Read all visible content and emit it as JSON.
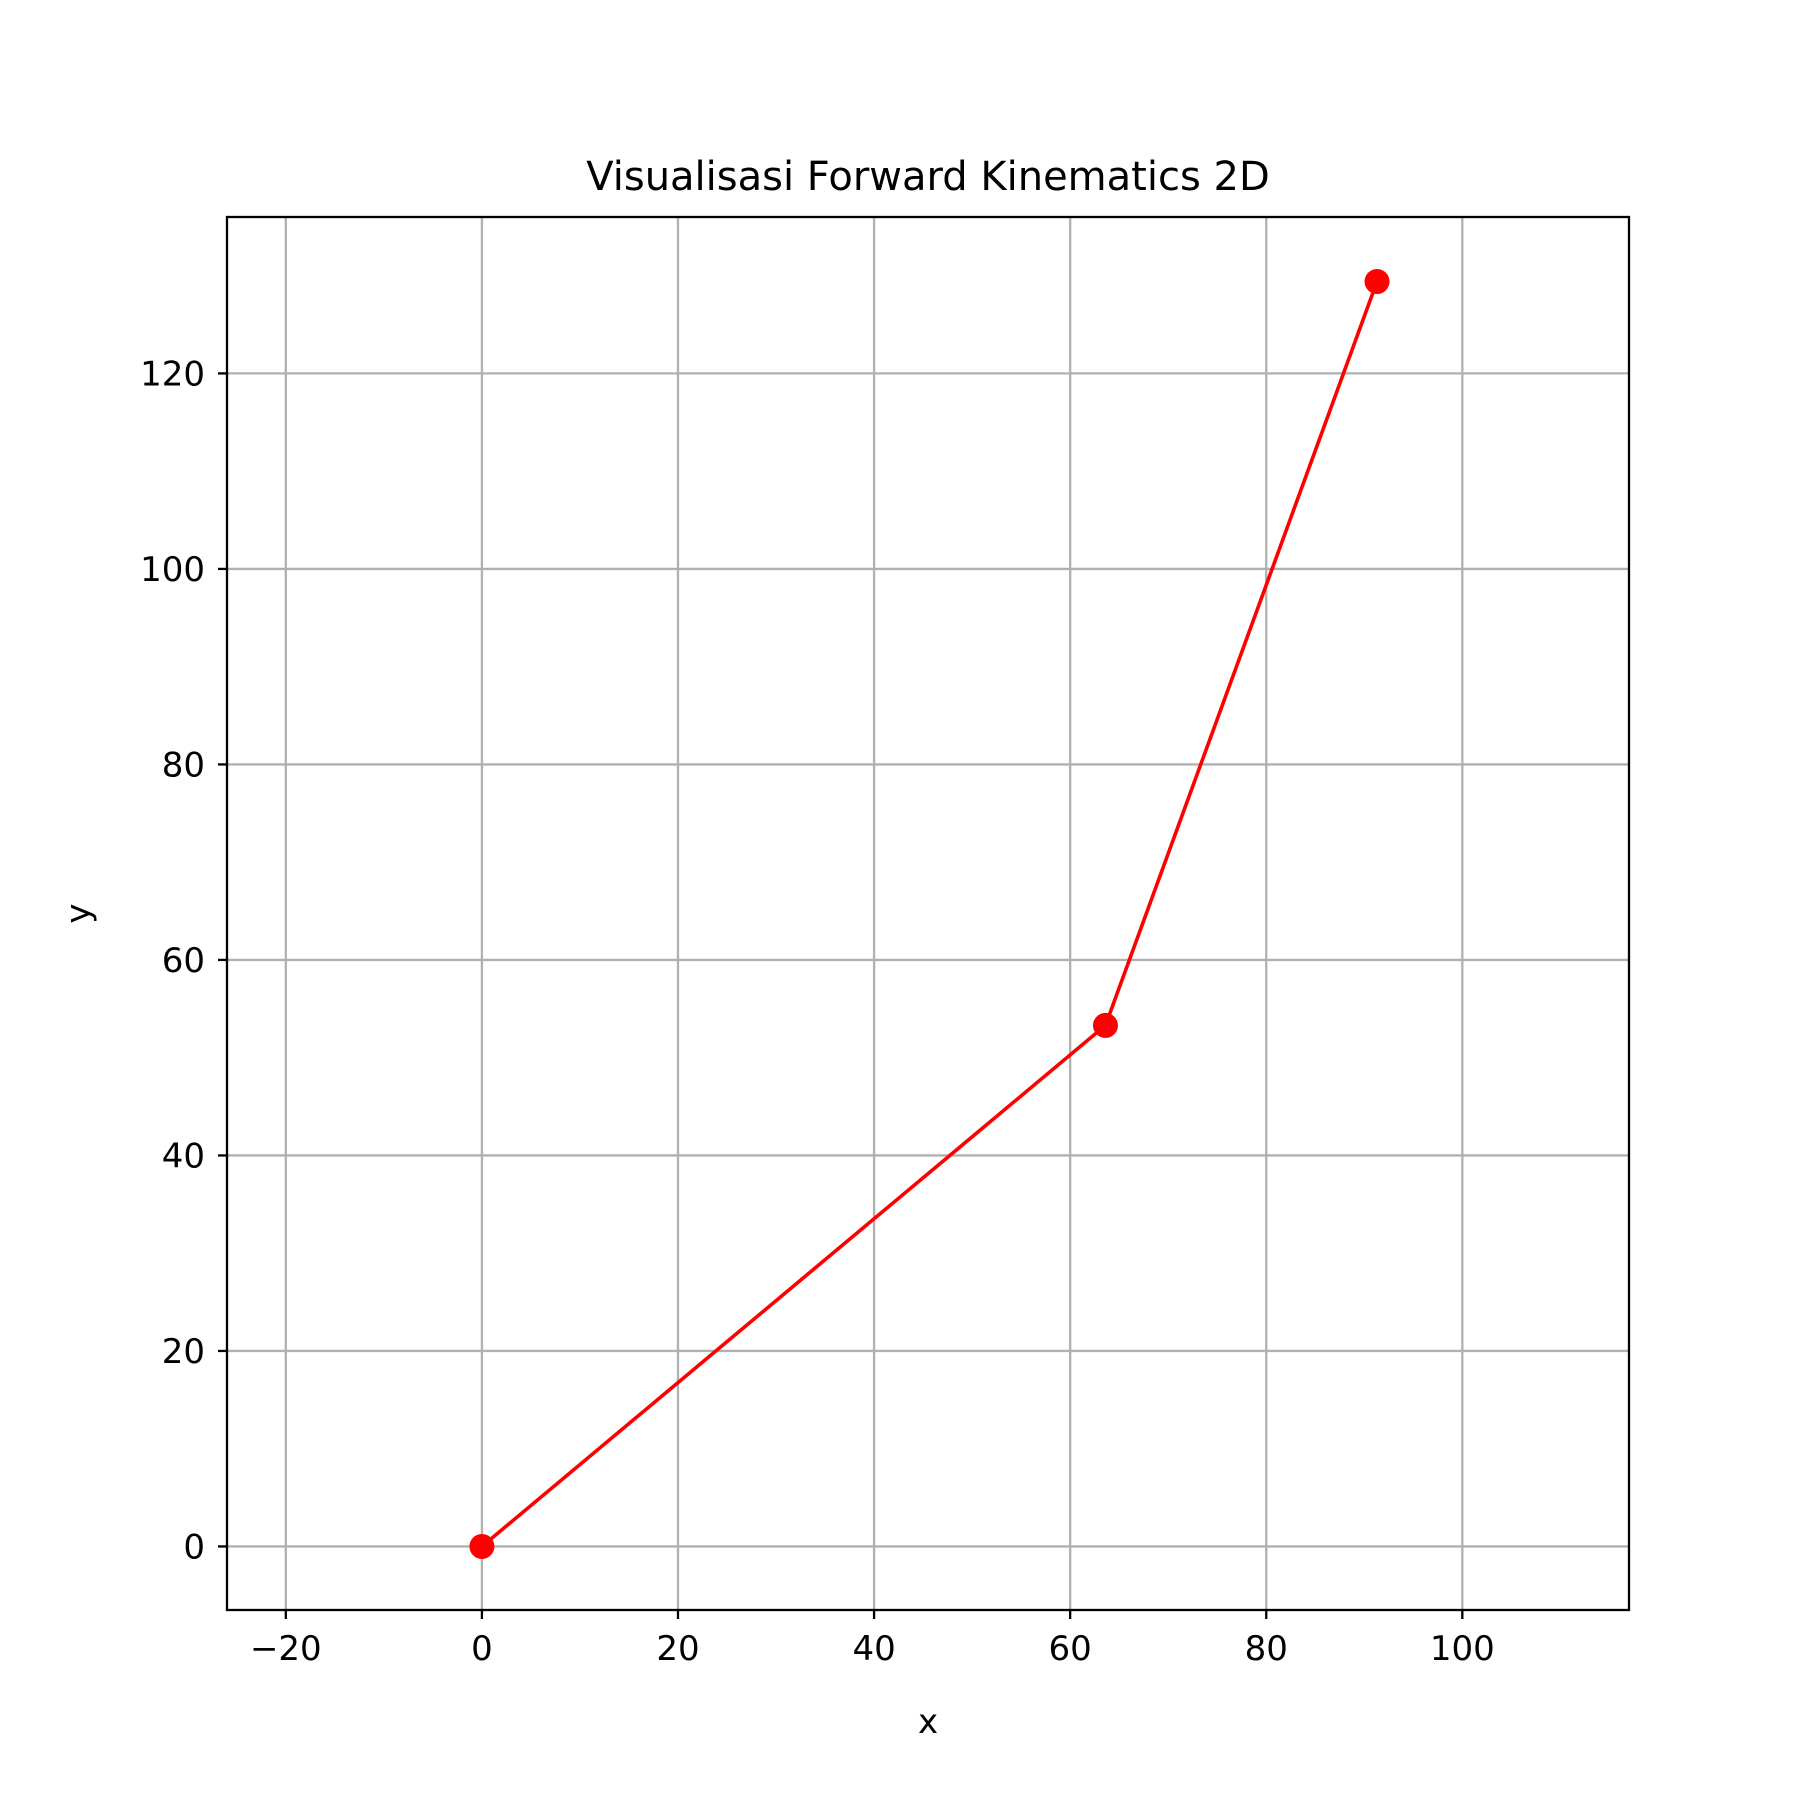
{
  "chart_data": {
    "type": "line",
    "title": "Visualisasi Forward Kinematics 2D",
    "xlabel": "x",
    "ylabel": "y",
    "xlim": [
      -26,
      117
    ],
    "ylim": [
      -6.5,
      136
    ],
    "xticks": [
      -20,
      0,
      20,
      40,
      60,
      80,
      100
    ],
    "xtick_labels": [
      "−20",
      "0",
      "20",
      "40",
      "60",
      "80",
      "100"
    ],
    "yticks": [
      0,
      20,
      40,
      60,
      80,
      100,
      120
    ],
    "ytick_labels": [
      "0",
      "20",
      "40",
      "60",
      "80",
      "100",
      "120"
    ],
    "grid": true,
    "series": [
      {
        "x": [
          0,
          63.6,
          91.3
        ],
        "y": [
          0,
          53.3,
          129.4
        ],
        "color": "#ff0000",
        "marker": "circle"
      }
    ]
  }
}
